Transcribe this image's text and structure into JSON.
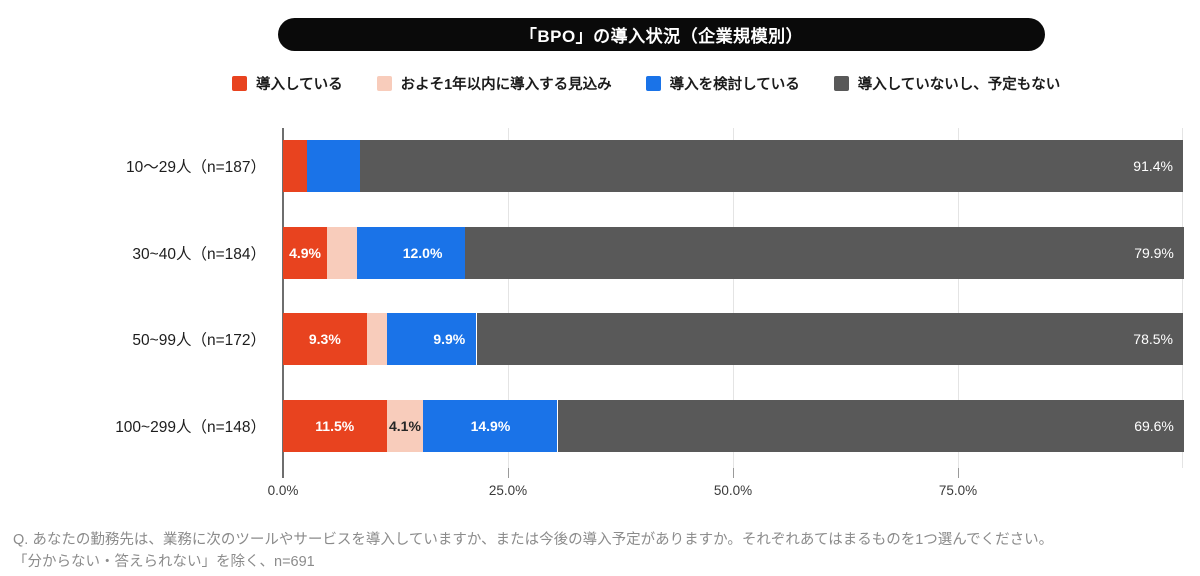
{
  "title": "「BPO」の導入状況（企業規模別）",
  "chart_data": {
    "type": "bar",
    "orientation": "horizontal",
    "stacked": true,
    "title": "「BPO」の導入状況（企業規模別）",
    "categories": [
      "10〜29人（n=187）",
      "30~40人（n=184）",
      "50~99人（n=172）",
      "100~299人（n=148）"
    ],
    "series": [
      {
        "name": "導入している",
        "color": "#e8431f",
        "values": [
          2.7,
          4.9,
          9.3,
          11.5
        ]
      },
      {
        "name": "およそ1年以内に導入する見込み",
        "color": "#f8ccbb",
        "values": [
          0.0,
          3.3,
          2.3,
          4.1
        ]
      },
      {
        "name": "導入を検討している",
        "color": "#1a73e8",
        "values": [
          5.9,
          12.0,
          9.9,
          14.9
        ]
      },
      {
        "name": "導入していないし、予定もない",
        "color": "#595959",
        "values": [
          91.4,
          79.9,
          78.5,
          69.6
        ]
      }
    ],
    "value_suffix": "%",
    "xlim": [
      0,
      100
    ],
    "x_ticks": [
      {
        "value": 0,
        "label": "0.0%"
      },
      {
        "value": 25,
        "label": "25.0%"
      },
      {
        "value": 50,
        "label": "50.0%"
      },
      {
        "value": 75,
        "label": "75.0%"
      }
    ],
    "grid": true,
    "legend_position": "top"
  },
  "footer": {
    "line1": "Q. あなたの勤務先は、業務に次のツールやサービスを導入していますか、または今後の導入予定がありますか。それぞれあてはまるものを1つ選んでください。",
    "line2": "「分からない・答えられない」を除く、n=691"
  }
}
